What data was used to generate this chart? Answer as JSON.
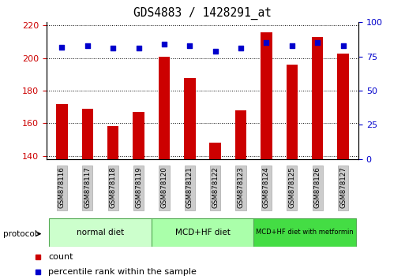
{
  "title": "GDS4883 / 1428291_at",
  "samples": [
    "GSM878116",
    "GSM878117",
    "GSM878118",
    "GSM878119",
    "GSM878120",
    "GSM878121",
    "GSM878122",
    "GSM878123",
    "GSM878124",
    "GSM878125",
    "GSM878126",
    "GSM878127"
  ],
  "counts": [
    172,
    169,
    158,
    167,
    201,
    188,
    148,
    168,
    216,
    196,
    213,
    203
  ],
  "percentile_ranks": [
    82,
    83,
    81,
    81,
    84,
    83,
    79,
    81,
    85,
    83,
    85,
    83
  ],
  "bar_color": "#cc0000",
  "dot_color": "#0000cc",
  "ylim_left": [
    138,
    222
  ],
  "ylim_right": [
    0,
    100
  ],
  "yticks_left": [
    140,
    160,
    180,
    200,
    220
  ],
  "yticks_right": [
    0,
    25,
    50,
    75,
    100
  ],
  "groups": [
    {
      "label": "normal diet",
      "start": 0,
      "end": 4,
      "color": "#ccffcc",
      "edge": "#55aa55"
    },
    {
      "label": "MCD+HF diet",
      "start": 4,
      "end": 8,
      "color": "#aaffaa",
      "edge": "#55aa55"
    },
    {
      "label": "MCD+HF diet with metformin",
      "start": 8,
      "end": 12,
      "color": "#44dd44",
      "edge": "#55aa55"
    }
  ],
  "legend_items": [
    {
      "label": "count",
      "color": "#cc0000"
    },
    {
      "label": "percentile rank within the sample",
      "color": "#0000cc"
    }
  ],
  "protocol_label": "protocol",
  "tick_label_bg": "#cccccc",
  "tick_label_edge": "#aaaaaa",
  "bar_width": 0.45
}
